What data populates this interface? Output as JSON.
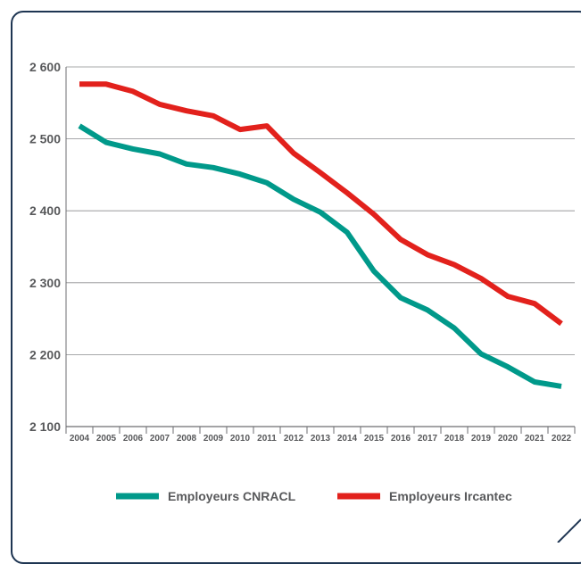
{
  "chart_data": {
    "type": "line",
    "title": "",
    "xlabel": "",
    "ylabel": "",
    "x": [
      "2004",
      "2005",
      "2006",
      "2007",
      "2008",
      "2009",
      "2010",
      "2011",
      "2012",
      "2013",
      "2014",
      "2015",
      "2016",
      "2017",
      "2018",
      "2019",
      "2020",
      "2021",
      "2022"
    ],
    "y_ticks": [
      "2 100",
      "2 200",
      "2 300",
      "2 400",
      "2 500",
      "2 600"
    ],
    "ylim": [
      2100,
      2600
    ],
    "grid": true,
    "legend_position": "bottom",
    "series": [
      {
        "name": "Employeurs CNRACL",
        "color": "#00998a",
        "values": [
          2518,
          2495,
          2486,
          2479,
          2465,
          2460,
          2451,
          2439,
          2416,
          2398,
          2370,
          2316,
          2279,
          2262,
          2237,
          2201,
          2183,
          2162,
          2156
        ]
      },
      {
        "name": "Employeurs Ircantec",
        "color": "#e2211c",
        "values": [
          2576,
          2576,
          2566,
          2548,
          2539,
          2532,
          2513,
          2518,
          2480,
          2453,
          2425,
          2395,
          2360,
          2339,
          2325,
          2306,
          2281,
          2271,
          2243
        ]
      }
    ]
  }
}
